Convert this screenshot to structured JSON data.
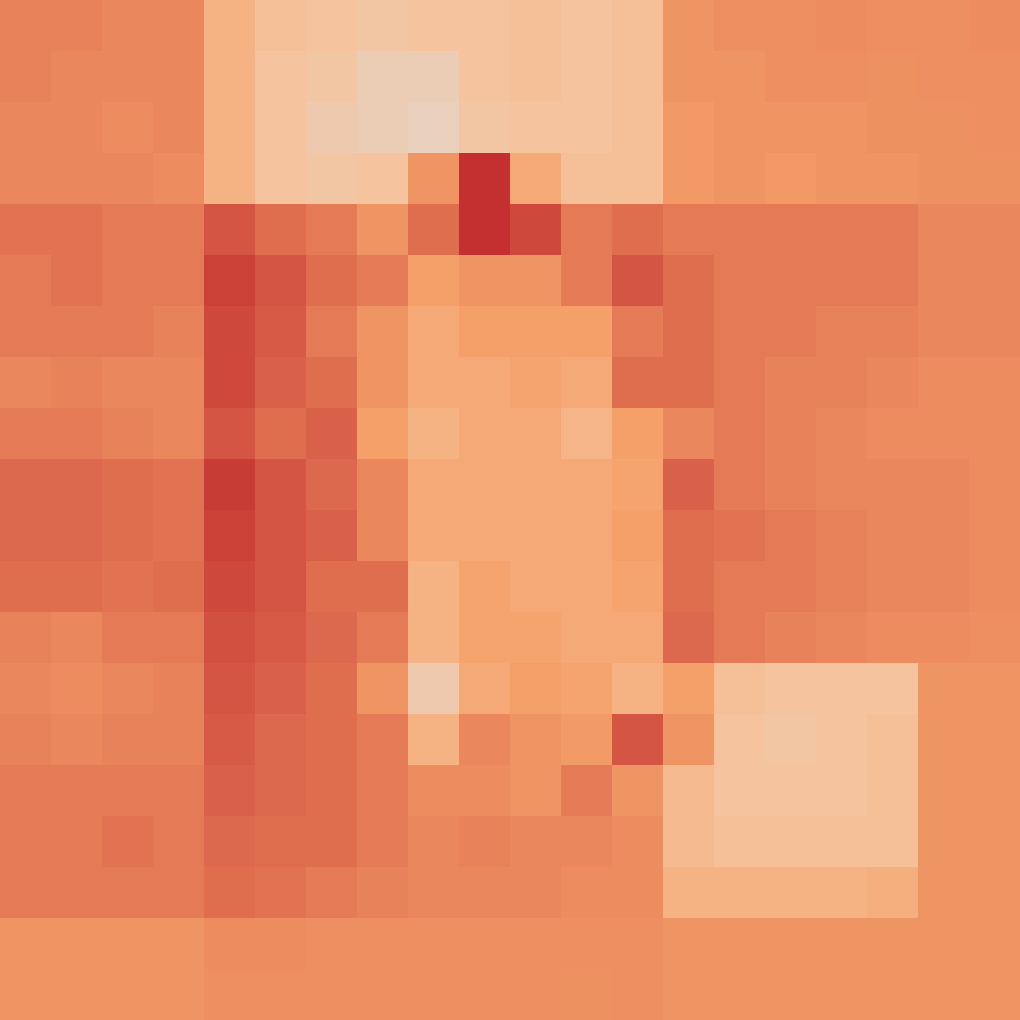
{
  "chart_data": {
    "type": "heatmap",
    "color": "Plasma",
    "tick_labels": false,
    "zlim": [
      0,
      1
    ],
    "cells": [
      [
        0.52,
        0.52,
        0.5,
        0.5,
        0.3,
        0.22,
        0.2,
        0.18,
        0.2,
        0.2,
        0.22,
        0.2,
        0.22,
        0.45,
        0.47,
        0.47,
        0.48,
        0.47,
        0.47,
        0.48
      ],
      [
        0.52,
        0.5,
        0.5,
        0.5,
        0.3,
        0.2,
        0.18,
        0.12,
        0.12,
        0.2,
        0.22,
        0.2,
        0.22,
        0.45,
        0.45,
        0.47,
        0.47,
        0.46,
        0.47,
        0.47
      ],
      [
        0.5,
        0.5,
        0.48,
        0.5,
        0.3,
        0.2,
        0.15,
        0.12,
        0.1,
        0.18,
        0.2,
        0.2,
        0.22,
        0.43,
        0.45,
        0.45,
        0.45,
        0.46,
        0.46,
        0.47
      ],
      [
        0.5,
        0.5,
        0.5,
        0.48,
        0.3,
        0.2,
        0.18,
        0.2,
        0.45,
        0.85,
        0.35,
        0.22,
        0.22,
        0.43,
        0.45,
        0.43,
        0.45,
        0.45,
        0.46,
        0.46
      ],
      [
        0.58,
        0.58,
        0.55,
        0.55,
        0.7,
        0.6,
        0.55,
        0.45,
        0.6,
        0.85,
        0.75,
        0.55,
        0.6,
        0.55,
        0.55,
        0.55,
        0.55,
        0.55,
        0.5,
        0.5
      ],
      [
        0.55,
        0.58,
        0.55,
        0.55,
        0.78,
        0.7,
        0.6,
        0.55,
        0.4,
        0.45,
        0.45,
        0.55,
        0.7,
        0.6,
        0.55,
        0.55,
        0.55,
        0.55,
        0.5,
        0.5
      ],
      [
        0.55,
        0.55,
        0.55,
        0.52,
        0.75,
        0.68,
        0.55,
        0.45,
        0.35,
        0.4,
        0.4,
        0.4,
        0.55,
        0.6,
        0.55,
        0.55,
        0.52,
        0.52,
        0.5,
        0.5
      ],
      [
        0.5,
        0.52,
        0.5,
        0.5,
        0.75,
        0.65,
        0.6,
        0.45,
        0.35,
        0.35,
        0.38,
        0.35,
        0.6,
        0.6,
        0.55,
        0.52,
        0.52,
        0.5,
        0.48,
        0.48
      ],
      [
        0.55,
        0.55,
        0.52,
        0.5,
        0.7,
        0.6,
        0.65,
        0.4,
        0.3,
        0.35,
        0.35,
        0.28,
        0.4,
        0.5,
        0.55,
        0.52,
        0.5,
        0.48,
        0.48,
        0.48
      ],
      [
        0.62,
        0.62,
        0.6,
        0.58,
        0.8,
        0.7,
        0.62,
        0.5,
        0.35,
        0.35,
        0.35,
        0.35,
        0.38,
        0.65,
        0.55,
        0.52,
        0.5,
        0.5,
        0.5,
        0.48
      ],
      [
        0.62,
        0.62,
        0.6,
        0.58,
        0.78,
        0.7,
        0.65,
        0.5,
        0.35,
        0.35,
        0.35,
        0.35,
        0.4,
        0.6,
        0.58,
        0.55,
        0.52,
        0.5,
        0.5,
        0.48
      ],
      [
        0.6,
        0.6,
        0.58,
        0.6,
        0.75,
        0.7,
        0.6,
        0.6,
        0.3,
        0.38,
        0.35,
        0.35,
        0.38,
        0.6,
        0.55,
        0.55,
        0.52,
        0.5,
        0.5,
        0.48
      ],
      [
        0.52,
        0.5,
        0.55,
        0.55,
        0.72,
        0.68,
        0.62,
        0.55,
        0.3,
        0.38,
        0.38,
        0.35,
        0.35,
        0.62,
        0.55,
        0.52,
        0.5,
        0.48,
        0.48,
        0.47
      ],
      [
        0.5,
        0.48,
        0.5,
        0.52,
        0.7,
        0.65,
        0.6,
        0.45,
        0.15,
        0.35,
        0.4,
        0.38,
        0.3,
        0.4,
        0.22,
        0.2,
        0.2,
        0.2,
        0.45,
        0.45
      ],
      [
        0.52,
        0.5,
        0.52,
        0.52,
        0.68,
        0.62,
        0.6,
        0.55,
        0.3,
        0.5,
        0.45,
        0.42,
        0.7,
        0.45,
        0.2,
        0.18,
        0.2,
        0.22,
        0.45,
        0.45
      ],
      [
        0.55,
        0.55,
        0.55,
        0.55,
        0.65,
        0.62,
        0.6,
        0.55,
        0.48,
        0.48,
        0.45,
        0.55,
        0.45,
        0.25,
        0.2,
        0.2,
        0.2,
        0.22,
        0.45,
        0.45
      ],
      [
        0.55,
        0.55,
        0.58,
        0.55,
        0.62,
        0.6,
        0.6,
        0.55,
        0.5,
        0.52,
        0.5,
        0.5,
        0.48,
        0.25,
        0.22,
        0.22,
        0.22,
        0.22,
        0.45,
        0.45
      ],
      [
        0.55,
        0.55,
        0.55,
        0.55,
        0.6,
        0.58,
        0.55,
        0.52,
        0.5,
        0.5,
        0.5,
        0.48,
        0.48,
        0.3,
        0.3,
        0.3,
        0.3,
        0.32,
        0.45,
        0.45
      ],
      [
        0.45,
        0.45,
        0.45,
        0.45,
        0.48,
        0.48,
        0.47,
        0.47,
        0.47,
        0.47,
        0.47,
        0.47,
        0.47,
        0.45,
        0.45,
        0.45,
        0.45,
        0.45,
        0.45,
        0.45
      ],
      [
        0.45,
        0.45,
        0.45,
        0.45,
        0.47,
        0.47,
        0.47,
        0.47,
        0.47,
        0.47,
        0.47,
        0.46,
        0.47,
        0.45,
        0.45,
        0.45,
        0.45,
        0.45,
        0.45,
        0.45
      ]
    ]
  }
}
